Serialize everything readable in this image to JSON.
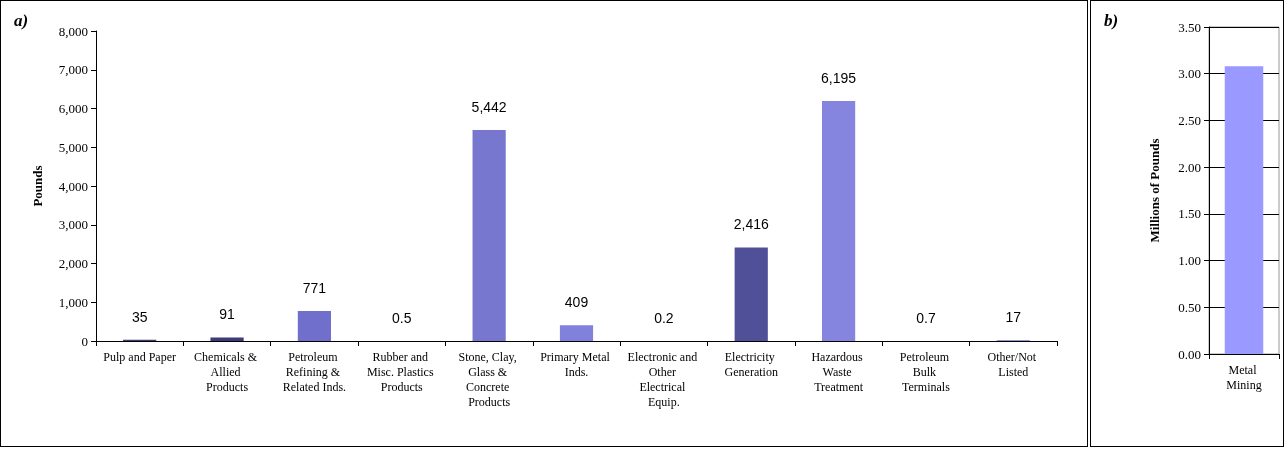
{
  "chart_data": [
    {
      "type": "bar",
      "title": "a)",
      "ylabel": "Pounds",
      "categories": [
        "Pulp and Paper",
        "Chemicals & Allied Products",
        "Petroleum Refining & Related Inds.",
        "Rubber and Misc. Plastics Products",
        "Stone, Clay, Glass & Concrete Products",
        "Primary Metal Inds.",
        "Electronic and Other Electrical Equip.",
        "Electricity Generation",
        "Hazardous Waste Treatment",
        "Petroleum Bulk Terminals",
        "Other/Not Listed"
      ],
      "values": [
        35,
        91,
        771,
        0.5,
        5442,
        409,
        0.2,
        2416,
        6195,
        0.7,
        17
      ],
      "value_labels": [
        "35",
        "91",
        "771",
        "0.5",
        "5,442",
        "409",
        "0.2",
        "2,416",
        "6,195",
        "0.7",
        "17"
      ],
      "colors": [
        "#3c3c78",
        "#3c3c78",
        "#7070cc",
        "#7070cc",
        "#7777d0",
        "#8080dd",
        "#7070cc",
        "#505098",
        "#8585e0",
        "#7070cc",
        "#7070cc"
      ],
      "ylim": [
        0,
        8000
      ],
      "yticks": [
        0,
        {
          "value": 1000,
          "label": "1,000"
        },
        {
          "value": 2000,
          "label": "2,000"
        },
        {
          "value": 3000,
          "label": "3,000"
        },
        {
          "value": 4000,
          "label": "4,000"
        },
        {
          "value": 5000,
          "label": "5,000"
        },
        {
          "value": 6000,
          "label": "6,000"
        },
        {
          "value": 7000,
          "label": "7,000"
        },
        {
          "value": 8000,
          "label": "8,000"
        }
      ],
      "grid": false
    },
    {
      "type": "bar",
      "title": "b)",
      "ylabel": "Millions of Pounds",
      "categories": [
        "Metal Mining"
      ],
      "values": [
        3.08
      ],
      "colors": [
        "#9999ff"
      ],
      "ylim": [
        0,
        3.5
      ],
      "yticks": [
        {
          "value": 0,
          "label": "0.00"
        },
        {
          "value": 0.5,
          "label": "0.50"
        },
        {
          "value": 1,
          "label": "1.00"
        },
        {
          "value": 1.5,
          "label": "1.50"
        },
        {
          "value": 2,
          "label": "2.00"
        },
        {
          "value": 2.5,
          "label": "2.50"
        },
        {
          "value": 3,
          "label": "3.00"
        },
        {
          "value": 3.5,
          "label": "3.50"
        }
      ],
      "grid": true
    }
  ]
}
